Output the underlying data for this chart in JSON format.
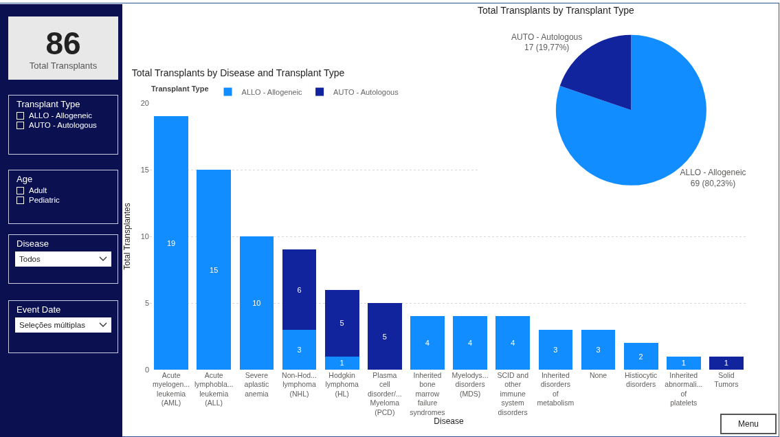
{
  "chart_data": [
    {
      "type": "other",
      "annotations": [
        "86",
        "Total Transplants",
        "Transplant Type",
        "ALLO - Allogeneic",
        "AUTO - Autologous",
        "Age",
        "Adult",
        "Pediatric",
        "Disease",
        "Todos",
        "Event Date",
        "Seleções múltiplas",
        "Menu"
      ]
    },
    {
      "type": "bar",
      "title": "Total Transplants by Disease and Transplant Type",
      "xlabel": "Disease",
      "ylabel": "Total Transplantes",
      "legend_title": "Transplant Type",
      "legend": "top left",
      "stacked": true,
      "grid": "y",
      "data_labels": true,
      "categories": [
        "Acute myelogen... leukemia (AML)",
        "Acute lymphobla... leukemia (ALL)",
        "Severe aplastic anemia",
        "Non-Hod... lymphoma (NHL)",
        "Hodgkin lymphoma (HL)",
        "Plasma cell disorder/... Myeloma (PCD)",
        "Inherited bone marrow failure syndromes",
        "Myelodys... disorders (MDS)",
        "SCID and other immune system disorders",
        "Inherited disorders of metabolism",
        "None",
        "Histiocytic disorders",
        "Inherited abnormali... of platelets",
        "Solid Tumors"
      ],
      "ylim": [
        0,
        20
      ],
      "yticks": [
        0,
        5,
        10,
        15,
        20
      ],
      "series": [
        {
          "name": "ALLO - Allogeneic",
          "color": "#118dff",
          "values": [
            19,
            15,
            10,
            3,
            1,
            null,
            4,
            4,
            4,
            3,
            3,
            2,
            1,
            null
          ]
        },
        {
          "name": "AUTO - Autologous",
          "color": "#12239e",
          "values": [
            null,
            null,
            null,
            6,
            5,
            5,
            null,
            null,
            null,
            null,
            null,
            null,
            null,
            1
          ]
        }
      ]
    },
    {
      "type": "pie",
      "title": "Total Transplants by Transplant Type",
      "categories": [
        "ALLO - Allogeneic",
        "AUTO - Autologous"
      ],
      "values": [
        69,
        17
      ],
      "colors": [
        "#118dff",
        "#12239e"
      ],
      "value_labels": [
        "69 (80,23%)",
        "17 (19,77%)"
      ]
    }
  ]
}
